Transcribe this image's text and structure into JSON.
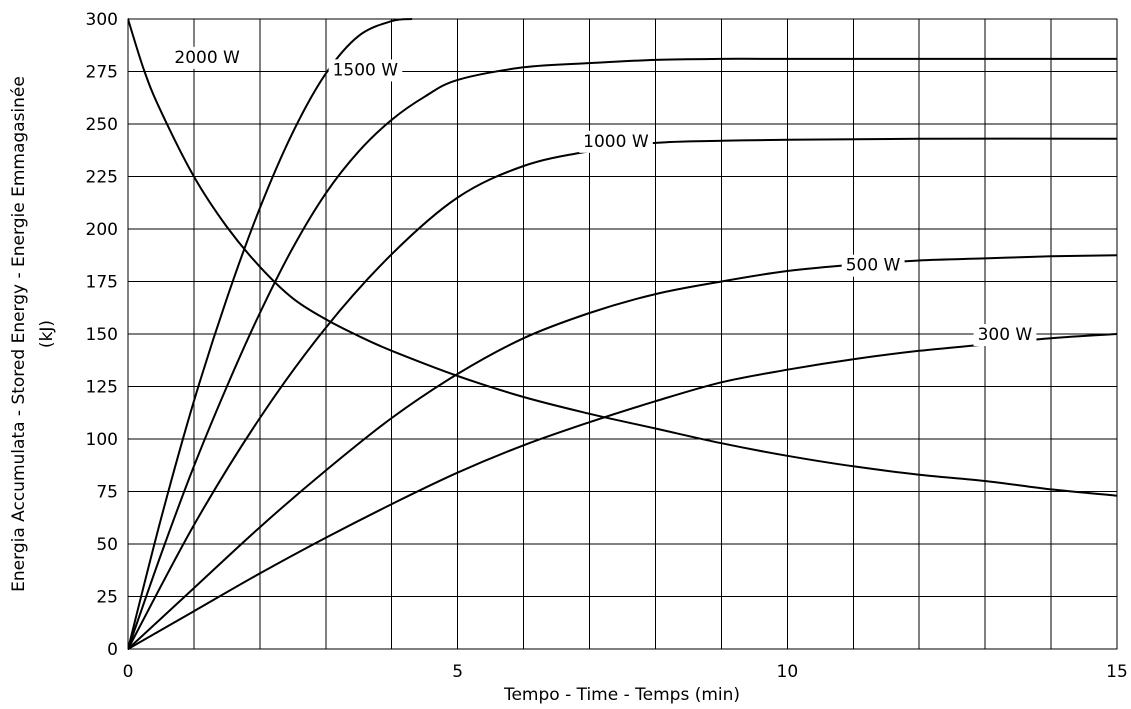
{
  "chart_data": {
    "type": "line",
    "title": "",
    "xlabel": "Tempo - Time - Temps   (min)",
    "ylabel_line1": "Energia Accumulata - Stored Energy - Energie Emmagasinée",
    "ylabel_line2": "(kJ)",
    "xlim": [
      0,
      15
    ],
    "ylim": [
      0,
      300
    ],
    "x_ticks": [
      0,
      5,
      10,
      15
    ],
    "y_ticks": [
      0,
      25,
      50,
      75,
      100,
      125,
      150,
      175,
      200,
      225,
      250,
      275,
      300
    ],
    "grid": true,
    "series": [
      {
        "name": "2000 W",
        "x": [
          0,
          0.5,
          1,
          1.5,
          2,
          2.5,
          3,
          3.5,
          4,
          4.3
        ],
        "y": [
          0,
          62,
          118,
          167,
          210,
          246,
          274,
          292,
          299,
          300
        ]
      },
      {
        "name": "1500 W",
        "x": [
          0,
          0.5,
          1,
          1.5,
          2,
          2.5,
          3,
          3.5,
          4,
          4.5,
          5,
          6,
          7,
          8,
          9,
          10,
          12,
          15
        ],
        "y": [
          0,
          45,
          87,
          125,
          160,
          191,
          217,
          237,
          252,
          263,
          271,
          277,
          279,
          280.5,
          281,
          281,
          281,
          281
        ]
      },
      {
        "name": "1000 W",
        "x": [
          0,
          1,
          2,
          3,
          4,
          5,
          6,
          7,
          8,
          9,
          10,
          12,
          15
        ],
        "y": [
          0,
          59,
          110,
          153,
          188,
          215,
          230,
          237,
          241,
          242,
          242.5,
          243,
          243
        ]
      },
      {
        "name": "500 W",
        "x": [
          0,
          1,
          2,
          3,
          4,
          5,
          6,
          7,
          8,
          9,
          10,
          11,
          12,
          13,
          14,
          15
        ],
        "y": [
          0,
          29,
          58,
          85,
          110,
          131,
          148,
          160,
          169,
          175,
          180,
          183,
          185,
          186,
          187,
          187.5
        ]
      },
      {
        "name": "300 W",
        "x": [
          0,
          1,
          2,
          3,
          4,
          5,
          6,
          7,
          8,
          9,
          10,
          11,
          12,
          13,
          14,
          15
        ],
        "y": [
          0,
          18,
          36,
          53,
          69,
          84,
          97,
          108,
          118,
          127,
          133,
          138,
          142,
          145,
          148,
          150
        ]
      },
      {
        "name": "",
        "x": [
          0,
          0.25,
          0.5,
          1,
          1.5,
          2,
          2.5,
          3,
          3.5,
          4,
          5,
          6,
          7,
          8,
          9,
          10,
          11,
          12,
          13,
          14,
          15
        ],
        "y": [
          300,
          275,
          256,
          225,
          201,
          182,
          167,
          157,
          149,
          142,
          130,
          120,
          112,
          105,
          98,
          92,
          87,
          83,
          80,
          76,
          73
        ]
      }
    ],
    "labels": [
      {
        "text": "2000 W",
        "x": 1.2,
        "y": 282
      },
      {
        "text": "1500 W",
        "x": 3.6,
        "y": 276
      },
      {
        "text": "1000 W",
        "x": 7.4,
        "y": 242
      },
      {
        "text": "500 W",
        "x": 11.3,
        "y": 183
      },
      {
        "text": "300 W",
        "x": 13.3,
        "y": 150
      }
    ]
  }
}
